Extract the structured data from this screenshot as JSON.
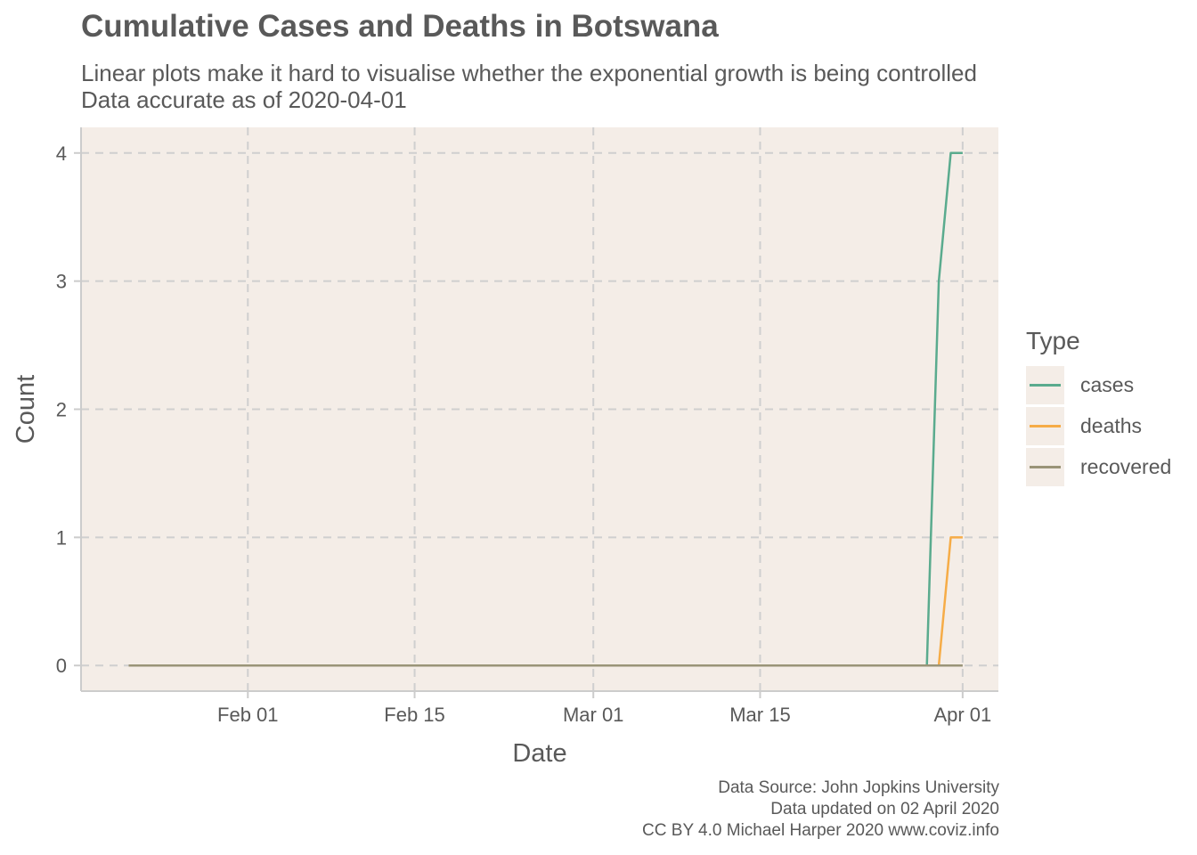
{
  "title": "Cumulative Cases and Deaths in Botswana",
  "subtitle_lines": [
    "Linear plots make it hard to visualise whether the exponential growth is being controlled",
    "Data accurate as of 2020-04-01"
  ],
  "caption_lines": [
    "Data Source: John Jopkins University",
    "Data updated on 02 April 2020",
    "CC BY 4.0 Michael Harper 2020 www.coviz.info"
  ],
  "legend": {
    "title": "Type",
    "items": [
      {
        "label": "cases",
        "color": "#5aab8e"
      },
      {
        "label": "deaths",
        "color": "#f6ac47"
      },
      {
        "label": "recovered",
        "color": "#9a9478"
      }
    ]
  },
  "chart_data": {
    "type": "line",
    "xlabel": "Date",
    "ylabel": "Count",
    "xlim": [
      "2020-01-18",
      "2020-04-04"
    ],
    "ylim": [
      -0.2,
      4.2
    ],
    "x_ticks": [
      {
        "date": "2020-02-01",
        "label": "Feb 01"
      },
      {
        "date": "2020-02-15",
        "label": "Feb 15"
      },
      {
        "date": "2020-03-01",
        "label": "Mar 01"
      },
      {
        "date": "2020-03-15",
        "label": "Mar 15"
      },
      {
        "date": "2020-04-01",
        "label": "Apr 01"
      }
    ],
    "y_ticks": [
      0,
      1,
      2,
      3,
      4
    ],
    "grid": true,
    "legend_position": "right",
    "series": [
      {
        "name": "cases",
        "color": "#5aab8e",
        "points": [
          [
            "2020-01-22",
            0
          ],
          [
            "2020-03-29",
            0
          ],
          [
            "2020-03-30",
            3
          ],
          [
            "2020-03-31",
            4
          ],
          [
            "2020-04-01",
            4
          ]
        ]
      },
      {
        "name": "deaths",
        "color": "#f6ac47",
        "points": [
          [
            "2020-01-22",
            0
          ],
          [
            "2020-03-30",
            0
          ],
          [
            "2020-03-31",
            1
          ],
          [
            "2020-04-01",
            1
          ]
        ]
      },
      {
        "name": "recovered",
        "color": "#9a9478",
        "points": [
          [
            "2020-01-22",
            0
          ],
          [
            "2020-04-01",
            0
          ]
        ]
      }
    ]
  }
}
